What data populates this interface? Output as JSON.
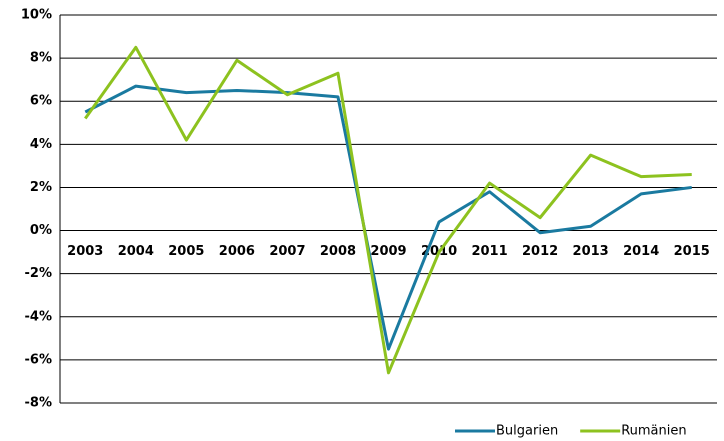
{
  "chart_data": {
    "type": "line",
    "categories": [
      "2003",
      "2004",
      "2005",
      "2006",
      "2007",
      "2008",
      "2009",
      "2010",
      "2011",
      "2012",
      "2013",
      "2014",
      "2015"
    ],
    "series": [
      {
        "name": "Bulgarien",
        "color": "#1a7aa0",
        "values": [
          5.5,
          6.7,
          6.4,
          6.5,
          6.4,
          6.2,
          -5.5,
          0.4,
          1.8,
          -0.1,
          0.2,
          1.7,
          2.0
        ]
      },
      {
        "name": "Rumänien",
        "color": "#8dc21f",
        "values": [
          5.2,
          8.5,
          4.2,
          7.9,
          6.3,
          7.3,
          -6.6,
          -1.0,
          2.2,
          0.6,
          3.5,
          2.5,
          2.6
        ]
      }
    ],
    "ylim": [
      -8,
      10
    ],
    "yticks": [
      {
        "value": -8,
        "label": "-8%"
      },
      {
        "value": -6,
        "label": "-6%"
      },
      {
        "value": -4,
        "label": "-4%"
      },
      {
        "value": -2,
        "label": "-2%"
      },
      {
        "value": 0,
        "label": "0%"
      },
      {
        "value": 2,
        "label": "2%"
      },
      {
        "value": 4,
        "label": "4%"
      },
      {
        "value": 6,
        "label": "6%"
      },
      {
        "value": 8,
        "label": "8%"
      },
      {
        "value": 10,
        "label": "10%"
      }
    ],
    "grid": true,
    "legend": "lower right"
  }
}
